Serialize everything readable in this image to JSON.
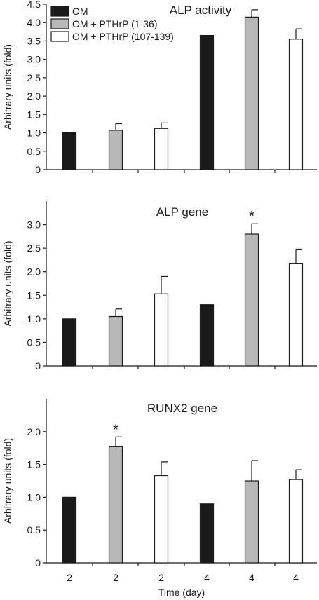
{
  "legend": [
    {
      "label": "OM",
      "color": "#1a1a1a"
    },
    {
      "label": "OM + PTHrP (1-36)",
      "color": "#b8b8b8"
    },
    {
      "label": "OM + PTHrP (107-139)",
      "color": "#ffffff"
    }
  ],
  "shared_xlabel": "Time (day)",
  "chart_data": [
    {
      "type": "bar",
      "title": "ALP activity",
      "ylabel": "Arbitrary units (fold)",
      "xlabel": "Time (day)",
      "ylim": [
        0,
        4.5
      ],
      "yticks": [
        "0",
        "0.5",
        "1.0",
        "1.5",
        "2.0",
        "2.5",
        "3.0",
        "3.5",
        "4.0",
        "4.5"
      ],
      "categories": [
        "2",
        "2",
        "2",
        "4",
        "4",
        "4"
      ],
      "series_index": [
        0,
        1,
        2,
        0,
        1,
        2
      ],
      "values": [
        1.0,
        1.07,
        1.12,
        3.65,
        4.15,
        3.55
      ],
      "errors": [
        0,
        0.18,
        0.15,
        0,
        0.2,
        0.28
      ],
      "significance": [
        "",
        "",
        "",
        "",
        "",
        ""
      ],
      "legend_position": "top-left"
    },
    {
      "type": "bar",
      "title": "ALP gene",
      "ylabel": "Arbitrary units (fold)",
      "xlabel": "Time (day)",
      "ylim": [
        0,
        3.5
      ],
      "yticks": [
        "0",
        "0.5",
        "1.0",
        "1.5",
        "2.0",
        "2.5",
        "3.0"
      ],
      "categories": [
        "2",
        "2",
        "2",
        "4",
        "4",
        "4"
      ],
      "series_index": [
        0,
        1,
        2,
        0,
        1,
        2
      ],
      "values": [
        1.0,
        1.05,
        1.53,
        1.3,
        2.8,
        2.18
      ],
      "errors": [
        0,
        0.16,
        0.37,
        0,
        0.22,
        0.3
      ],
      "significance": [
        "",
        "",
        "",
        "",
        "*",
        ""
      ]
    },
    {
      "type": "bar",
      "title": "RUNX2 gene",
      "ylabel": "Arbitrary units (fold)",
      "xlabel": "Time (day)",
      "ylim": [
        0,
        2.5
      ],
      "yticks": [
        "0",
        "0.5",
        "1.0",
        "1.5",
        "2.0"
      ],
      "categories": [
        "2",
        "2",
        "2",
        "4",
        "4",
        "4"
      ],
      "series_index": [
        0,
        1,
        2,
        0,
        1,
        2
      ],
      "values": [
        1.0,
        1.77,
        1.33,
        0.9,
        1.25,
        1.27
      ],
      "errors": [
        0,
        0.15,
        0.21,
        0,
        0.31,
        0.15
      ],
      "significance": [
        "",
        "*",
        "",
        "",
        "",
        ""
      ]
    }
  ]
}
